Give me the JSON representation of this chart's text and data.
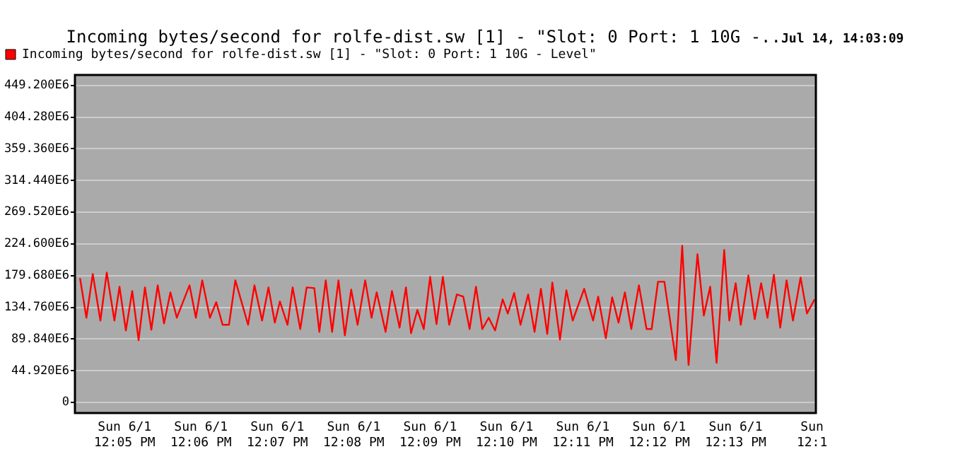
{
  "chart_data": {
    "type": "line",
    "title": "Incoming bytes/second for rolfe-dist.sw [1] - \"Slot: 0 Port: 1 10G -..",
    "annotations": [
      "Jul 14, 14:03:09"
    ],
    "x": [
      "--06-01T12:04:25",
      "--06-01T12:04:30",
      "--06-01T12:04:35",
      "--06-01T12:04:41",
      "--06-01T12:04:46",
      "--06-01T12:04:52",
      "--06-01T12:04:56",
      "--06-01T12:05:01",
      "--06-01T12:05:06",
      "--06-01T12:05:11",
      "--06-01T12:05:16",
      "--06-01T12:05:21",
      "--06-01T12:05:26",
      "--06-01T12:05:31",
      "--06-01T12:05:36",
      "--06-01T12:05:41",
      "--06-01T12:05:51",
      "--06-01T12:05:56",
      "--06-01T12:06:01",
      "--06-01T12:06:07",
      "--06-01T12:06:12",
      "--06-01T12:06:17",
      "--06-01T12:06:22",
      "--06-01T12:06:27",
      "--06-01T12:06:37",
      "--06-01T12:06:42",
      "--06-01T12:06:48",
      "--06-01T12:06:53",
      "--06-01T12:06:58",
      "--06-01T12:07:02",
      "--06-01T12:07:08",
      "--06-01T12:07:12",
      "--06-01T12:07:18",
      "--06-01T12:07:23",
      "--06-01T12:07:29",
      "--06-01T12:07:33",
      "--06-01T12:07:38",
      "--06-01T12:07:43",
      "--06-01T12:07:48",
      "--06-01T12:07:53",
      "--06-01T12:07:58",
      "--06-01T12:08:03",
      "--06-01T12:08:09",
      "--06-01T12:08:14",
      "--06-01T12:08:18",
      "--06-01T12:08:25",
      "--06-01T12:08:30",
      "--06-01T12:08:36",
      "--06-01T12:08:41",
      "--06-01T12:08:45",
      "--06-01T12:08:50",
      "--06-01T12:08:55",
      "--06-01T12:09:00",
      "--06-01T12:09:05",
      "--06-01T12:09:10",
      "--06-01T12:09:15",
      "--06-01T12:09:21",
      "--06-01T12:09:26",
      "--06-01T12:09:31",
      "--06-01T12:09:36",
      "--06-01T12:09:41",
      "--06-01T12:09:46",
      "--06-01T12:09:51",
      "--06-01T12:09:57",
      "--06-01T12:10:01",
      "--06-01T12:10:06",
      "--06-01T12:10:11",
      "--06-01T12:10:17",
      "--06-01T12:10:22",
      "--06-01T12:10:27",
      "--06-01T12:10:32",
      "--06-01T12:10:36",
      "--06-01T12:10:42",
      "--06-01T12:10:47",
      "--06-01T12:10:52",
      "--06-01T12:11:01",
      "--06-01T12:11:08",
      "--06-01T12:11:12",
      "--06-01T12:11:18",
      "--06-01T12:11:23",
      "--06-01T12:11:28",
      "--06-01T12:11:33",
      "--06-01T12:11:38",
      "--06-01T12:11:44",
      "--06-01T12:11:50",
      "--06-01T12:11:54",
      "--06-01T12:11:59",
      "--06-01T12:12:04",
      "--06-01T12:12:13",
      "--06-01T12:12:18",
      "--06-01T12:12:23",
      "--06-01T12:12:30",
      "--06-01T12:12:35",
      "--06-01T12:12:40",
      "--06-01T12:12:45",
      "--06-01T12:12:51",
      "--06-01T12:12:55",
      "--06-01T12:13:00",
      "--06-01T12:13:04",
      "--06-01T12:13:10",
      "--06-01T12:13:15",
      "--06-01T12:13:20",
      "--06-01T12:13:25",
      "--06-01T12:13:30",
      "--06-01T12:13:35",
      "--06-01T12:13:40",
      "--06-01T12:13:45",
      "--06-01T12:13:51",
      "--06-01T12:13:56",
      "--06-01T12:14:02"
    ],
    "series": [
      {
        "name": "Incoming bytes/second for rolfe-dist.sw [1] - \"Slot: 0 Port: 1 10G - Level\"",
        "color": "#ff0000",
        "values": [
          176000000,
          120000000,
          182000000,
          116000000,
          184000000,
          116000000,
          164000000,
          102000000,
          158000000,
          88000000,
          163000000,
          103000000,
          166000000,
          112000000,
          156000000,
          120000000,
          166000000,
          120000000,
          173000000,
          120000000,
          142000000,
          110000000,
          110000000,
          173000000,
          110000000,
          166000000,
          116000000,
          163000000,
          113000000,
          143000000,
          110000000,
          163000000,
          104000000,
          163000000,
          162000000,
          100000000,
          173000000,
          100000000,
          173000000,
          95000000,
          160000000,
          110000000,
          173000000,
          120000000,
          156000000,
          100000000,
          158000000,
          106000000,
          163000000,
          98000000,
          131000000,
          104000000,
          178000000,
          111000000,
          178000000,
          110000000,
          153000000,
          150000000,
          104000000,
          164000000,
          104000000,
          120000000,
          102000000,
          146000000,
          126000000,
          155000000,
          110000000,
          153000000,
          100000000,
          161000000,
          97000000,
          170000000,
          89000000,
          159000000,
          116000000,
          161000000,
          116000000,
          150000000,
          91000000,
          149000000,
          113000000,
          156000000,
          104000000,
          166000000,
          104000000,
          104000000,
          171000000,
          171000000,
          60000000,
          222000000,
          53000000,
          210000000,
          123000000,
          164000000,
          56000000,
          216000000,
          116000000,
          169000000,
          110000000,
          180000000,
          118000000,
          169000000,
          120000000,
          181000000,
          106000000,
          173000000,
          116000000,
          177000000,
          126000000,
          146000000
        ]
      }
    ],
    "xlim": [
      "--06-01T12:04:21",
      "--06-01T12:14:03"
    ],
    "xticks": [
      {
        "value": "--06-01T12:05",
        "label": "Sun 6/1\n12:05 PM"
      },
      {
        "value": "--06-01T12:06",
        "label": "Sun 6/1\n12:06 PM"
      },
      {
        "value": "--06-01T12:07",
        "label": "Sun 6/1\n12:07 PM"
      },
      {
        "value": "--06-01T12:08",
        "label": "Sun 6/1\n12:08 PM"
      },
      {
        "value": "--06-01T12:09",
        "label": "Sun 6/1\n12:09 PM"
      },
      {
        "value": "--06-01T12:10",
        "label": "Sun 6/1\n12:10 PM"
      },
      {
        "value": "--06-01T12:11",
        "label": "Sun 6/1\n12:11 PM"
      },
      {
        "value": "--06-01T12:12",
        "label": "Sun 6/1\n12:12 PM"
      },
      {
        "value": "--06-01T12:13",
        "label": "Sun 6/1\n12:13 PM"
      },
      {
        "value": "--06-01T12:14",
        "label": "Sun\n12:1"
      }
    ],
    "ylim": [
      -15000000,
      464000000
    ],
    "yticks": [
      0,
      {
        "value": 44920000,
        "label": "44.920E6"
      },
      {
        "value": 89840000,
        "label": "89.840E6"
      },
      {
        "value": 134760000,
        "label": "134.760E6"
      },
      {
        "value": 179680000,
        "label": "179.680E6"
      },
      {
        "value": 224600000,
        "label": "224.600E6"
      },
      {
        "value": 269520000,
        "label": "269.520E6"
      },
      {
        "value": 314440000,
        "label": "314.440E6"
      },
      {
        "value": 359360000,
        "label": "359.360E6"
      },
      {
        "value": 404280000,
        "label": "404.280E6"
      },
      {
        "value": 449200000,
        "label": "449.200E6"
      }
    ],
    "grid": "y",
    "legend": "top left",
    "marker": "none",
    "line_style": "solid"
  }
}
